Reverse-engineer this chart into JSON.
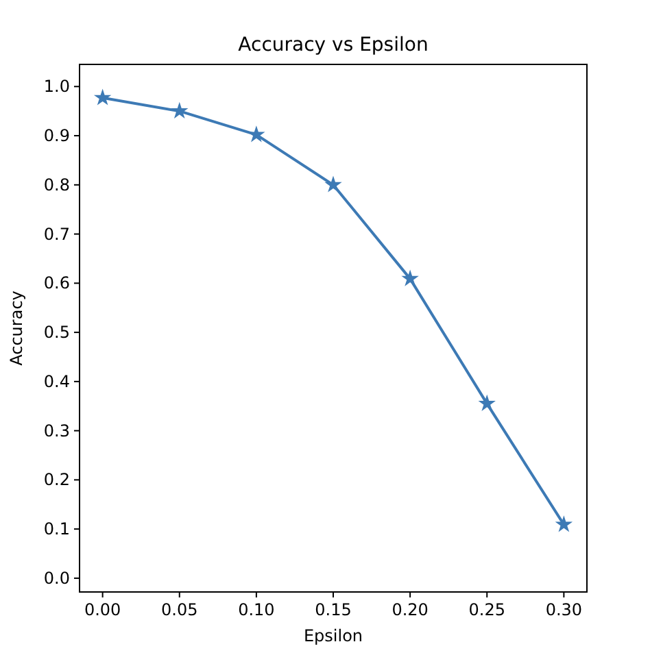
{
  "chart_data": {
    "type": "line",
    "title": "Accuracy vs Epsilon",
    "xlabel": "Epsilon",
    "ylabel": "Accuracy",
    "x": [
      0,
      0.05,
      0.1,
      0.15,
      0.2,
      0.25,
      0.3
    ],
    "series": [
      {
        "color": "#3d7ab5",
        "values": [
          0.977,
          0.95,
          0.902,
          0.8,
          0.609,
          0.355,
          0.109
        ]
      }
    ],
    "xlim": [
      -0.015,
      0.315
    ],
    "ylim": [
      -0.028,
      1.045
    ],
    "xticks": [
      {
        "value": 0,
        "label": "0.00"
      },
      {
        "value": 0.05,
        "label": "0.05"
      },
      {
        "value": 0.1,
        "label": "0.10"
      },
      {
        "value": 0.15,
        "label": "0.15"
      },
      {
        "value": 0.2,
        "label": "0.20"
      },
      {
        "value": 0.25,
        "label": "0.25"
      },
      {
        "value": 0.3,
        "label": "0.30"
      }
    ],
    "yticks": [
      {
        "value": 0,
        "label": "0.0"
      },
      {
        "value": 0.1,
        "label": "0.1"
      },
      {
        "value": 0.2,
        "label": "0.2"
      },
      {
        "value": 0.3,
        "label": "0.3"
      },
      {
        "value": 0.4,
        "label": "0.4"
      },
      {
        "value": 0.5,
        "label": "0.5"
      },
      {
        "value": 0.6,
        "label": "0.6"
      },
      {
        "value": 0.7,
        "label": "0.7"
      },
      {
        "value": 0.8,
        "label": "0.8"
      },
      {
        "value": 0.9,
        "label": "0.9"
      },
      {
        "value": 1.0,
        "label": "1.0"
      }
    ],
    "marker": "star",
    "line_style": "solid"
  }
}
